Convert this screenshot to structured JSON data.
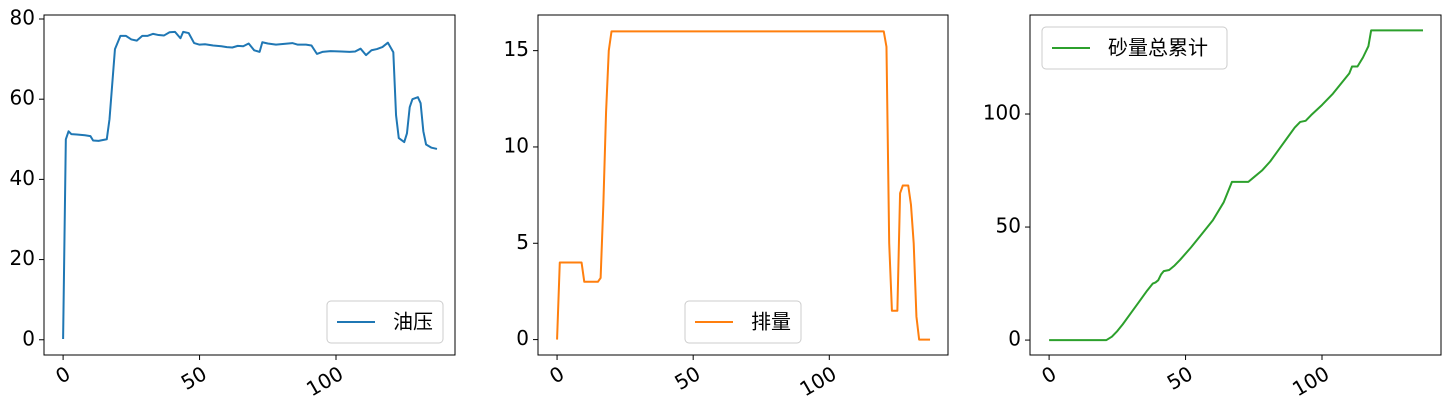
{
  "chart_data": [
    {
      "type": "line",
      "x": [
        0,
        1,
        2,
        3,
        5,
        8,
        10,
        11,
        13,
        16,
        17,
        19,
        21,
        23,
        25,
        27,
        29,
        31,
        33,
        35,
        37,
        39,
        41,
        43,
        44,
        46,
        48,
        50,
        52,
        55,
        58,
        60,
        62,
        64,
        66,
        68,
        70,
        72,
        73,
        75,
        78,
        81,
        84,
        86,
        89,
        91,
        93,
        95,
        98,
        102,
        105,
        107,
        109,
        111,
        113,
        115,
        117,
        119,
        121,
        122,
        123,
        125,
        126,
        127,
        128,
        130,
        131,
        132,
        133,
        135,
        137
      ],
      "series": [
        {
          "name": "油压",
          "color": "#1f77b4",
          "values": [
            0.2,
            50,
            52,
            51.3,
            51.2,
            51,
            50.8,
            49.7,
            49.6,
            50,
            55,
            72.5,
            75.8,
            75.8,
            74.9,
            74.6,
            75.8,
            75.8,
            76.3,
            76,
            75.9,
            76.7,
            76.8,
            75.2,
            76.8,
            76.5,
            74,
            73.6,
            73.7,
            73.4,
            73.2,
            73,
            72.9,
            73.3,
            73.2,
            73.9,
            72.2,
            71.8,
            74.2,
            73.9,
            73.6,
            73.8,
            74,
            73.6,
            73.6,
            73.4,
            71.3,
            71.8,
            72,
            71.9,
            71.8,
            71.9,
            72.6,
            71,
            72.2,
            72.5,
            73,
            74.1,
            71.7,
            56,
            50.3,
            49.3,
            51.5,
            58,
            60,
            60.5,
            59,
            52,
            48.7,
            47.9,
            47.6
          ]
        }
      ],
      "xlim": [
        -7,
        143.6
      ],
      "ylim": [
        -3.8,
        81
      ],
      "xticks": [
        0,
        50,
        100
      ],
      "yticks": [
        0,
        20,
        40,
        60,
        80
      ],
      "legend": "lower right"
    },
    {
      "type": "line",
      "x": [
        0,
        1,
        3,
        6,
        9,
        10,
        12,
        15,
        16,
        17,
        18,
        19,
        20,
        50,
        100,
        120,
        121,
        122,
        123,
        125,
        126,
        127,
        129,
        130,
        131,
        132,
        133,
        136,
        137
      ],
      "series": [
        {
          "name": "排量",
          "color": "#ff7f0e",
          "values": [
            0,
            4,
            4,
            4,
            4,
            3,
            3,
            3,
            3.2,
            7,
            11.8,
            15,
            16,
            16,
            16,
            16,
            15.2,
            5,
            1.5,
            1.5,
            7.6,
            8,
            8,
            7,
            5,
            1.2,
            0,
            0,
            0
          ]
        }
      ],
      "xlim": [
        -7,
        143.6
      ],
      "ylim": [
        -0.8,
        16.85
      ],
      "xticks": [
        0,
        50,
        100
      ],
      "yticks": [
        0,
        5,
        10,
        15
      ],
      "legend": "lower center"
    },
    {
      "type": "line",
      "x": [
        0,
        21,
        23,
        25,
        27,
        30,
        33,
        36,
        38,
        39,
        40,
        41,
        42,
        44,
        46,
        48,
        52,
        56,
        60,
        64,
        66,
        67,
        73,
        75,
        78,
        81,
        84,
        87,
        90,
        92,
        94,
        96,
        100,
        104,
        108,
        110,
        111,
        113,
        115,
        117,
        118,
        137
      ],
      "series": [
        {
          "name": "砂量总累计",
          "color": "#2ca02c",
          "values": [
            0,
            0,
            1.5,
            4,
            7,
            12,
            17,
            22,
            25,
            25.5,
            26.5,
            29,
            30.5,
            31,
            33,
            35.5,
            41,
            47,
            53,
            61,
            67,
            70,
            70,
            72,
            75,
            79,
            84,
            89,
            94,
            96.5,
            97,
            99.5,
            104,
            109,
            115,
            118,
            121,
            121,
            125,
            130,
            137,
            137
          ]
        }
      ],
      "xlim": [
        -7,
        143.6
      ],
      "ylim": [
        -6.6,
        143.8
      ],
      "xticks": [
        0,
        50,
        100
      ],
      "yticks": [
        0,
        50,
        100
      ],
      "legend": "upper left"
    }
  ]
}
